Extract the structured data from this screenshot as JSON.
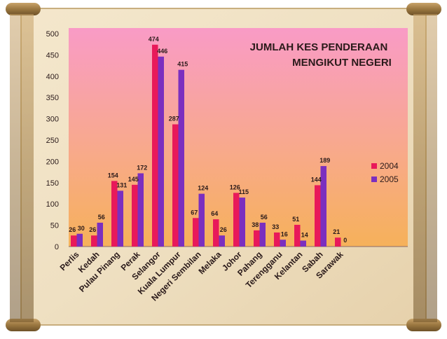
{
  "colors": {
    "series_2004": "#e8195a",
    "series_2005": "#7b2fbf",
    "plot_bg_top": "#f99bc6",
    "plot_bg_bottom": "#f6b15a",
    "parchment": "#efe0c2",
    "roller": "#9a7740"
  },
  "chart_data": {
    "type": "bar",
    "title": "JUMLAH KES PENDERAAN MENGIKUT NEGERI",
    "title_lines": [
      "JUMLAH KES PENDERAAN",
      "MENGIKUT NEGERI"
    ],
    "xlabel": "",
    "ylabel": "",
    "ylim": [
      0,
      500
    ],
    "yticks": [
      0,
      50,
      100,
      150,
      200,
      250,
      300,
      350,
      400,
      450,
      500
    ],
    "grid": false,
    "legend_position": "right",
    "categories": [
      "Perlis",
      "Kedah",
      "Pulau Pinang",
      "Perak",
      "Selangor",
      "Kuala Lumpur",
      "Negeri Sembilan",
      "Melaka",
      "Johor",
      "Pahang",
      "Terengganu",
      "Kelantan",
      "Sabah",
      "Sarawak"
    ],
    "series": [
      {
        "name": "2004",
        "values": [
          26,
          26,
          154,
          145,
          474,
          287,
          67,
          64,
          126,
          38,
          33,
          51,
          144,
          21
        ]
      },
      {
        "name": "2005",
        "values": [
          30,
          56,
          131,
          172,
          446,
          415,
          124,
          26,
          115,
          56,
          16,
          14,
          189,
          0
        ]
      }
    ]
  }
}
